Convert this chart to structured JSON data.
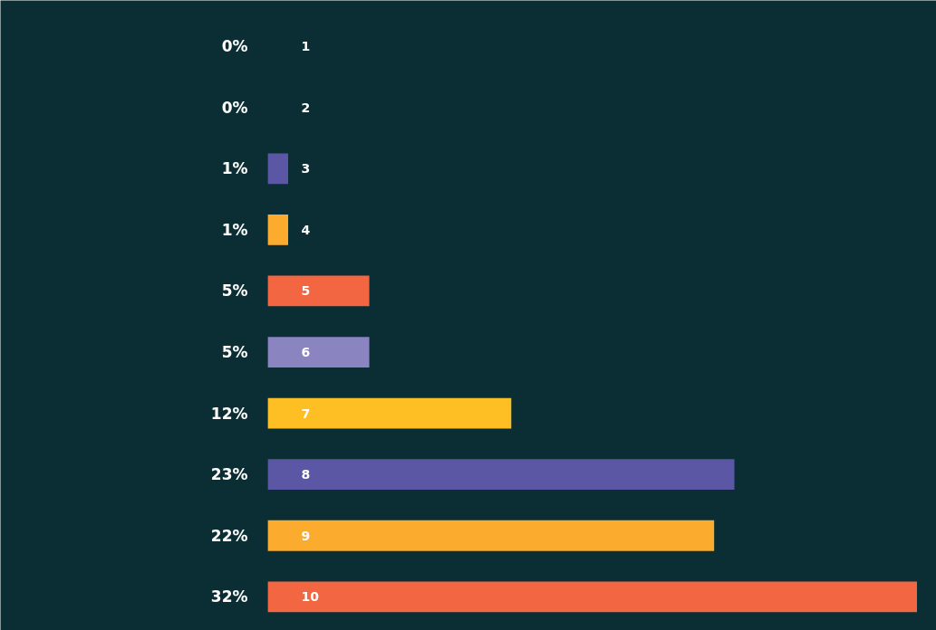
{
  "chart_data": {
    "type": "bar",
    "orientation": "horizontal",
    "categories": [
      "1",
      "2",
      "3",
      "4",
      "5",
      "6",
      "7",
      "8",
      "9",
      "10"
    ],
    "values": [
      0,
      0,
      1,
      1,
      5,
      5,
      12,
      23,
      22,
      32
    ],
    "value_labels": [
      "0%",
      "0%",
      "1%",
      "1%",
      "5%",
      "5%",
      "12%",
      "23%",
      "22%",
      "32%"
    ],
    "colors": [
      "#5b57a5",
      "#5b57a5",
      "#5b57a5",
      "#fbab2e",
      "#f26641",
      "#8a84c0",
      "#fdbf24",
      "#5b57a5",
      "#fbab2e",
      "#f26641"
    ],
    "grid": false
  }
}
